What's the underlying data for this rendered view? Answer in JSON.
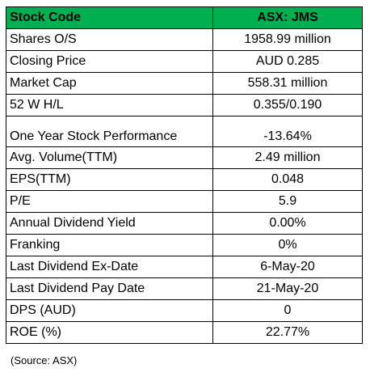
{
  "table": {
    "header": {
      "label": "Stock Code",
      "value": "ASX: JMS",
      "background": "#00b050"
    },
    "rows": [
      {
        "label": "Shares O/S",
        "value": "1958.99 million"
      },
      {
        "label": "Closing Price",
        "value": "AUD 0.285"
      },
      {
        "label": "Market Cap",
        "value": "558.31 million"
      },
      {
        "label": "52 W H/L",
        "value": "0.355/0.190"
      },
      {
        "label": "One Year Stock Performance",
        "value": "-13.64%"
      },
      {
        "label": "Avg. Volume(TTM)",
        "value": "2.49 million"
      },
      {
        "label": "EPS(TTM)",
        "value": "0.048"
      },
      {
        "label": "P/E",
        "value": "5.9"
      },
      {
        "label": "Annual Dividend Yield",
        "value": "0.00%"
      },
      {
        "label": "Franking",
        "value": "0%"
      },
      {
        "label": "Last Dividend Ex-Date",
        "value": "6-May-20"
      },
      {
        "label": "Last Dividend Pay Date",
        "value": "21-May-20"
      },
      {
        "label": "DPS (AUD)",
        "value": "0"
      },
      {
        "label": "ROE (%)",
        "value": "22.77%"
      }
    ]
  },
  "source_note": "(Source: ASX)"
}
